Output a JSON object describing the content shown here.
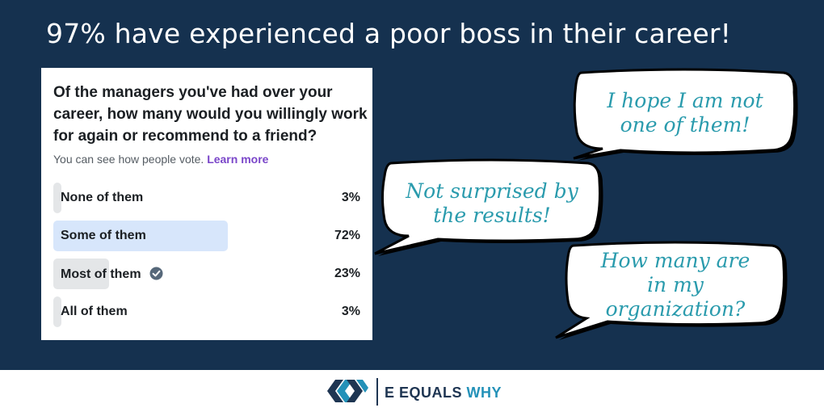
{
  "headline": "97% have experienced a poor boss in their career!",
  "poll": {
    "question": "Of the managers you've had over your career, how many would you willingly work for again or recommend to a friend?",
    "visibility_text": "You can see how people vote.",
    "learn_more": "Learn more",
    "options": [
      {
        "label": "None of them",
        "percent": "3%",
        "share": 0.03,
        "selected": false,
        "voted": false
      },
      {
        "label": "Some of them",
        "percent": "72%",
        "share": 0.72,
        "selected": true,
        "voted": false
      },
      {
        "label": "Most of them",
        "percent": "23%",
        "share": 0.23,
        "selected": false,
        "voted": true
      },
      {
        "label": "All of them",
        "percent": "3%",
        "share": 0.03,
        "selected": false,
        "voted": false
      }
    ]
  },
  "bubbles": [
    {
      "line1": "I hope I am not",
      "line2": "one of them!"
    },
    {
      "line1": "Not surprised by",
      "line2": "the results!"
    },
    {
      "line1": "How many are",
      "line2": "in my",
      "line3": "organization?"
    }
  ],
  "brand": {
    "name_part1": "E EQUALS",
    "name_part2": "WHY",
    "logo_icon": "interlocking-chevrons-logo"
  },
  "colors": {
    "background": "#15314f",
    "bubble_text": "#2a9bad",
    "selected_bar": "#d7e6fb",
    "bar": "#e4e6e8",
    "learn_more": "#7a46c9",
    "brand_dark": "#1e3552",
    "brand_accent": "#2391b8"
  }
}
